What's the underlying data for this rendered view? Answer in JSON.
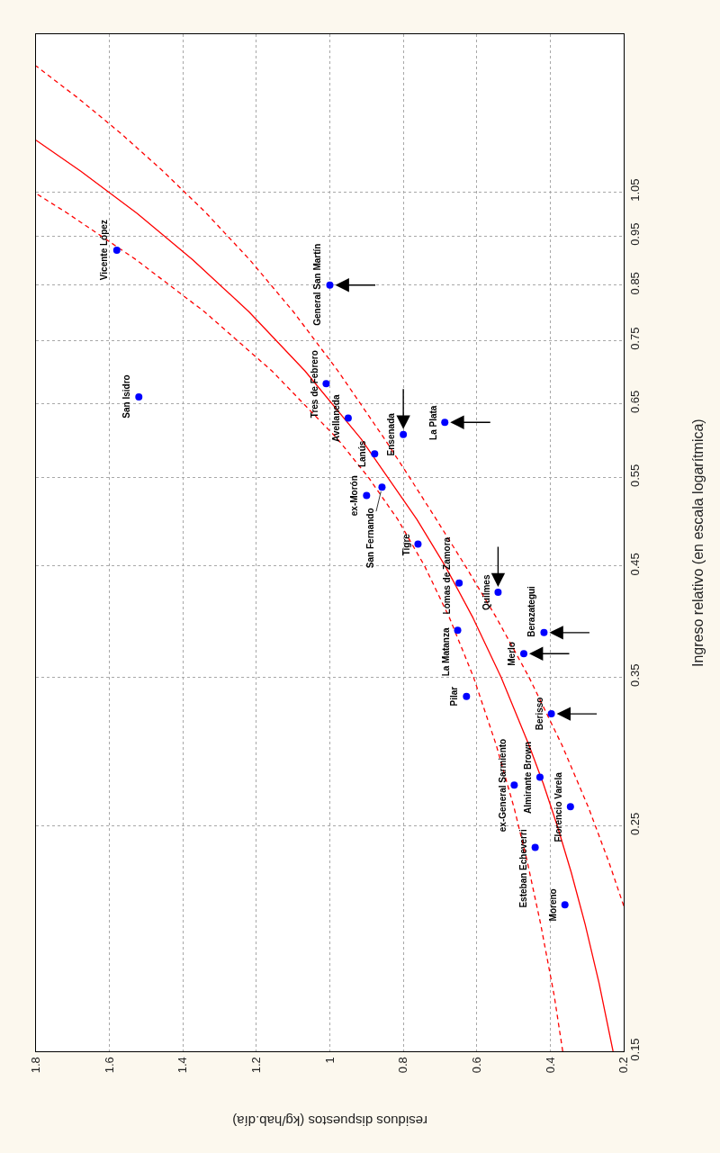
{
  "chart_data": {
    "type": "scatter",
    "xlabel": "residuos dispuestos (kg/hab.día)",
    "ylabel": "Ingreso relativo (en escala logarítmica)",
    "log": "y",
    "xlim": [
      1.8,
      0.2
    ],
    "xticks": [
      1.8,
      1.6,
      1.4,
      1.2,
      1,
      0.8,
      0.6,
      0.4,
      0.2
    ],
    "ylim": [
      0.15,
      1.5
    ],
    "yticks": [
      0.15,
      0.25,
      0.35,
      0.45,
      0.55,
      0.65,
      0.75,
      0.85,
      0.95,
      1.05
    ],
    "grid": true,
    "series": [
      {
        "type": "line",
        "color": "#ff0000",
        "line_style": "solid",
        "x": [
          0.229,
          0.267,
          0.305,
          0.343,
          0.381,
          0.419,
          0.458,
          0.534,
          0.61,
          0.686,
          0.763,
          0.915,
          1.068,
          1.22,
          1.373,
          1.525,
          1.678,
          1.8
        ],
        "values": [
          0.15,
          0.175,
          0.2,
          0.225,
          0.25,
          0.275,
          0.3,
          0.35,
          0.4,
          0.45,
          0.5,
          0.6,
          0.7,
          0.8,
          0.9,
          1.0,
          1.1,
          1.18
        ]
      },
      {
        "type": "line",
        "color": "#ff0000",
        "line_style": "dashed",
        "x": [
          0.2,
          0.24,
          0.295,
          0.368,
          0.458,
          0.546,
          0.631,
          0.71,
          0.783,
          0.851,
          0.978,
          1.099,
          1.218,
          1.336,
          1.454,
          1.571,
          1.688,
          1.8
        ],
        "values": [
          0.2085,
          0.23,
          0.26,
          0.3,
          0.35,
          0.4,
          0.45,
          0.5,
          0.55,
          0.6,
          0.7,
          0.8,
          0.9,
          1.0,
          1.1,
          1.2,
          1.3,
          1.396
        ]
      },
      {
        "type": "line",
        "color": "#ff0000",
        "line_style": "dashed",
        "x": [
          0.366,
          0.389,
          0.426,
          0.462,
          0.498,
          0.547,
          0.609,
          0.674,
          0.742,
          0.815,
          0.895,
          0.979,
          1.158,
          1.341,
          1.527,
          1.714,
          1.8
        ],
        "values": [
          0.15,
          0.17,
          0.2,
          0.23,
          0.26,
          0.3,
          0.35,
          0.4,
          0.45,
          0.5,
          0.55,
          0.6,
          0.7,
          0.8,
          0.9,
          1.0,
          1.046
        ]
      },
      {
        "color": "#0000ff",
        "marker": "circle",
        "x": [
          1.58,
          1.0,
          1.52,
          1.01,
          0.95,
          0.8,
          0.687,
          0.878,
          0.9,
          0.858,
          0.76,
          0.648,
          0.542,
          0.652,
          0.417,
          0.472,
          0.628,
          0.397,
          0.498,
          0.428,
          0.345,
          0.441,
          0.36
        ],
        "values": [
          0.92,
          0.85,
          0.66,
          0.68,
          0.629,
          0.606,
          0.623,
          0.58,
          0.528,
          0.538,
          0.473,
          0.433,
          0.424,
          0.389,
          0.387,
          0.369,
          0.335,
          0.322,
          0.274,
          0.279,
          0.261,
          0.238,
          0.209
        ]
      }
    ],
    "annotations": [
      {
        "text": "Vicente López",
        "x": 1.58,
        "y": 0.92
      },
      {
        "text": "General San Martín",
        "x": 1.0,
        "y": 0.85
      },
      {
        "text": "San Isidro",
        "x": 1.52,
        "y": 0.66
      },
      {
        "text": "Tres de Febrero",
        "x": 1.01,
        "y": 0.68
      },
      {
        "text": "Avellaneda",
        "x": 0.95,
        "y": 0.629
      },
      {
        "text": "Ensenada",
        "x": 0.8,
        "y": 0.606
      },
      {
        "text": "La Plata",
        "x": 0.687,
        "y": 0.623
      },
      {
        "text": "Lanús",
        "x": 0.878,
        "y": 0.58
      },
      {
        "text": "ex-Morón",
        "x": 0.9,
        "y": 0.528
      },
      {
        "text": "San Fernando",
        "x": 0.858,
        "y": 0.538
      },
      {
        "text": "Tigre",
        "x": 0.76,
        "y": 0.473
      },
      {
        "text": "Lomas de Zamora",
        "x": 0.648,
        "y": 0.433
      },
      {
        "text": "Quilmes",
        "x": 0.542,
        "y": 0.424
      },
      {
        "text": "La Matanza",
        "x": 0.652,
        "y": 0.389
      },
      {
        "text": "Berazategui",
        "x": 0.417,
        "y": 0.387
      },
      {
        "text": "Merlo",
        "x": 0.472,
        "y": 0.369
      },
      {
        "text": "Pilar",
        "x": 0.628,
        "y": 0.335
      },
      {
        "text": "Berisso",
        "x": 0.397,
        "y": 0.322
      },
      {
        "text": "ex-General Sarmiento",
        "x": 0.498,
        "y": 0.274
      },
      {
        "text": "Almirante Brown",
        "x": 0.428,
        "y": 0.279
      },
      {
        "text": "Florencio Varela",
        "x": 0.345,
        "y": 0.261
      },
      {
        "text": "Esteban Echeverri",
        "x": 0.441,
        "y": 0.238
      },
      {
        "text": "Moreno",
        "x": 0.36,
        "y": 0.209
      }
    ]
  }
}
